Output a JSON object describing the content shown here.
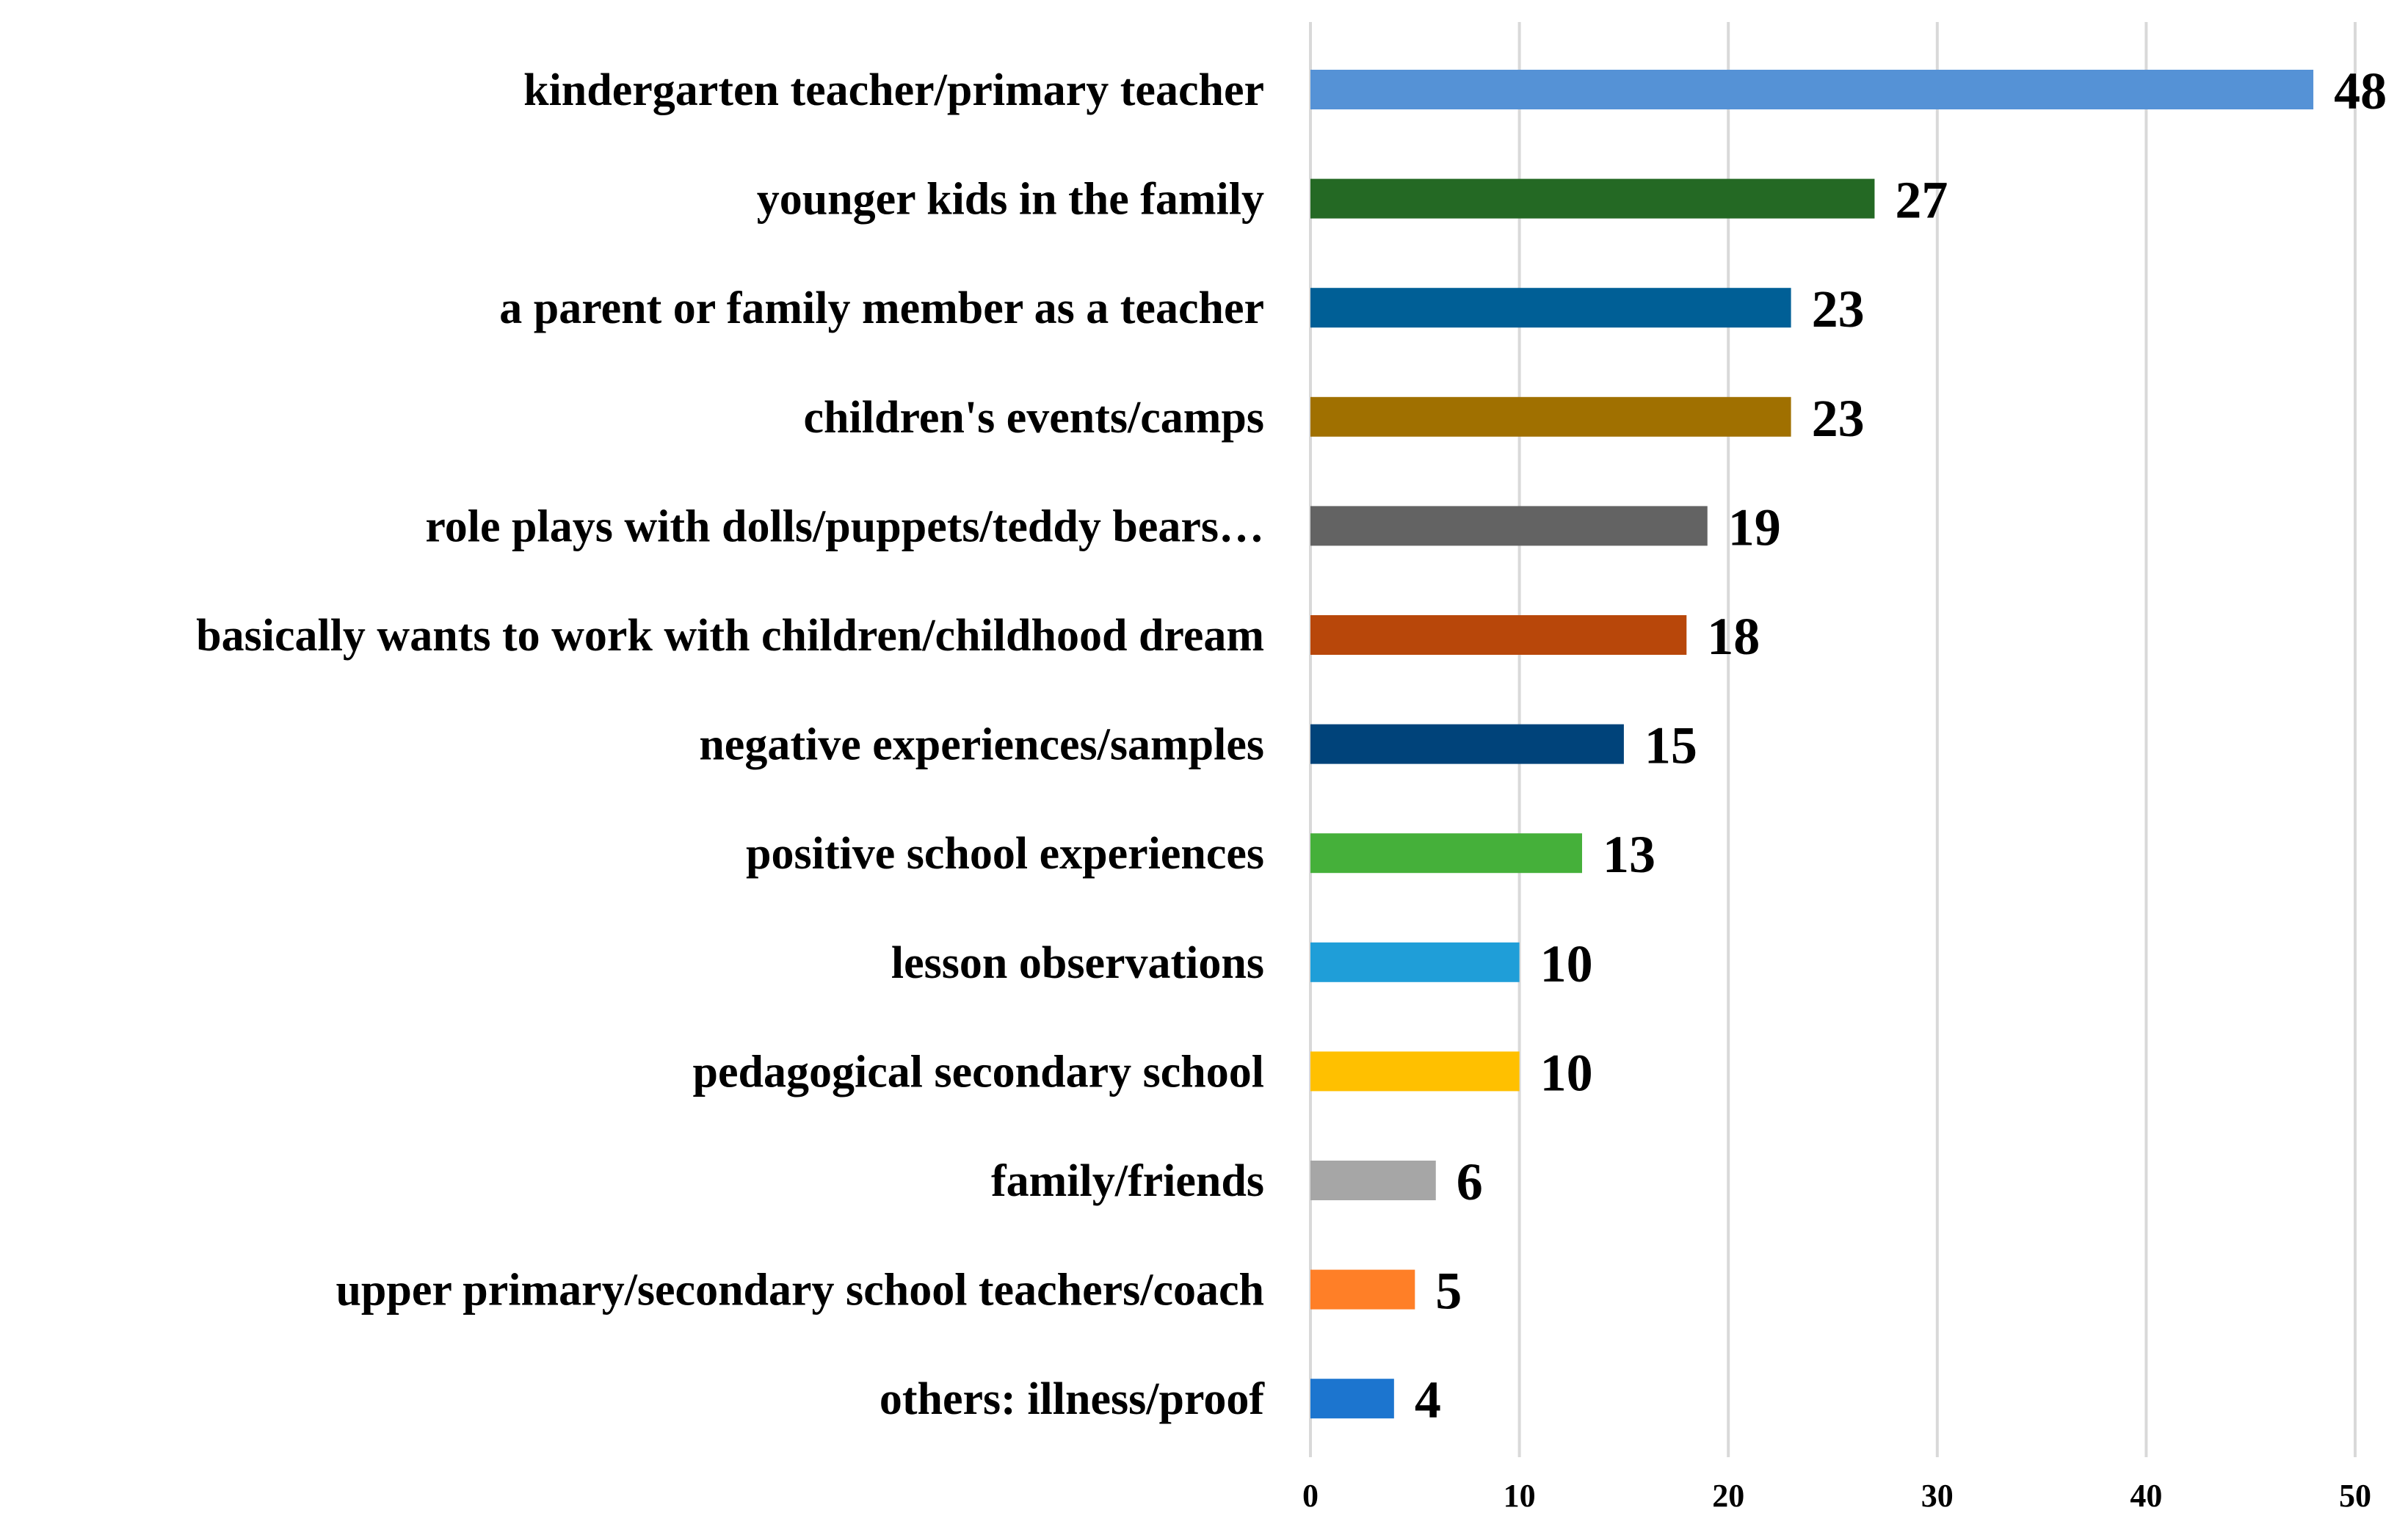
{
  "chart_data": {
    "type": "bar",
    "orientation": "horizontal",
    "title": "",
    "xlabel": "",
    "ylabel": "",
    "xlim": [
      0,
      50
    ],
    "ticks": [
      0,
      10,
      20,
      30,
      40,
      50
    ],
    "grid": true,
    "legend": "none",
    "categories": [
      "kindergarten teacher/primary teacher",
      "younger kids in the family",
      "a parent or family member as a teacher",
      "children's events/camps",
      "role plays with dolls/puppets/teddy bears…",
      "basically wants to work with children/childhood dream",
      "negative experiences/samples",
      "positive school experiences",
      "lesson observations",
      "pedagogical secondary school",
      "family/friends",
      "upper primary/secondary school teachers/coach",
      "others: illness/proof"
    ],
    "values": [
      48,
      27,
      23,
      23,
      19,
      18,
      15,
      13,
      10,
      10,
      6,
      5,
      4
    ],
    "colors": [
      "#5592d6",
      "#246924",
      "#005f96",
      "#a07000",
      "#636363",
      "#b8470a",
      "#00437a",
      "#45b03a",
      "#1f9ed8",
      "#ffc000",
      "#a6a6a6",
      "#ff7f27",
      "#1c75cf"
    ]
  }
}
